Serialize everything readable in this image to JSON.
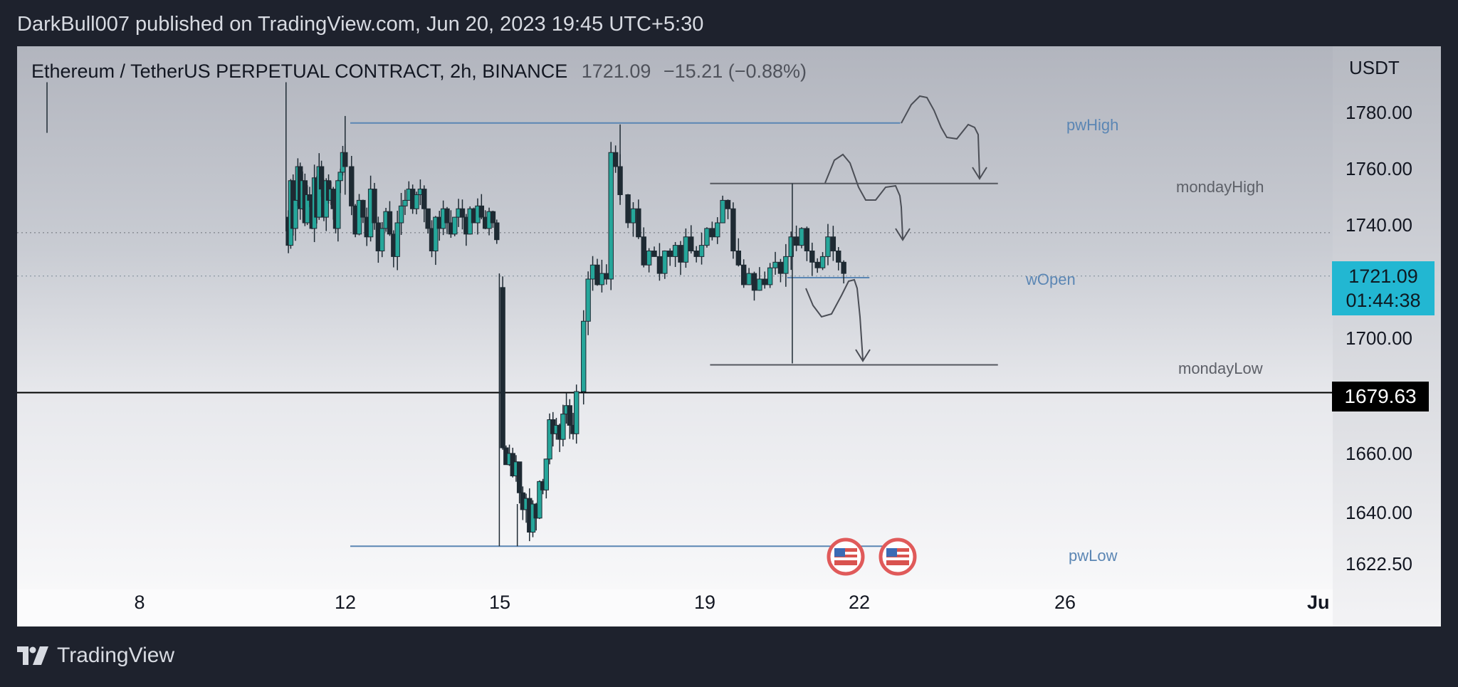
{
  "header": {
    "publish_info": "DarkBull007 published on TradingView.com, Jun 20, 2023 19:45 UTC+5:30"
  },
  "symbol": {
    "title": "Ethereum / TetherUS PERPETUAL CONTRACT, 2h, BINANCE",
    "last": "1721.09",
    "change": "−15.21 (−0.88%)"
  },
  "price_axis": {
    "unit": "USDT",
    "ticks": [
      "1780.00",
      "1760.00",
      "1740.00",
      "1700.00",
      "1660.00",
      "1640.00",
      "1622.50"
    ],
    "current_price": "1721.09",
    "countdown": "01:44:38",
    "crosshair_price": "1679.63"
  },
  "time_axis": {
    "ticks": [
      "8",
      "12",
      "15",
      "19",
      "22",
      "26",
      "Ju"
    ]
  },
  "levels": {
    "pwHigh": "pwHigh",
    "mondayHigh": "mondayHigh",
    "wOpen": "wOpen",
    "mondayLow": "mondayLow",
    "pwLow": "pwLow"
  },
  "colors": {
    "up": "#26a69a",
    "down": "#1e2a33",
    "level_blue": "#5b86b4",
    "level_gray": "#5d6068",
    "price_tag": "#22b7d2"
  },
  "footer": {
    "brand": "TradingView",
    "logo_icon": "tradingview-logo-icon"
  },
  "chart_data": {
    "type": "candlestick",
    "title": "Ethereum / TetherUS PERPETUAL CONTRACT, 2h, BINANCE",
    "xlabel": "",
    "ylabel": "USDT",
    "ylim": [
      1613,
      1790
    ],
    "grid": false,
    "x_ticks": [
      "8",
      "12",
      "15",
      "19",
      "22",
      "26",
      "Ju"
    ],
    "levels": [
      {
        "name": "pwHigh",
        "value": 1775.5
      },
      {
        "name": "mondayHigh",
        "value": 1754
      },
      {
        "name": "wOpen",
        "value": 1720.5
      },
      {
        "name": "mondayLow",
        "value": 1689.5
      },
      {
        "name": "pwLow",
        "value": 1625
      }
    ],
    "last_price": 1721.09,
    "crosshair_price": 1679.63,
    "segments": [
      {
        "start": 10.85,
        "end": 12.0,
        "prices": [
          1742,
          1732,
          1755,
          1738,
          1748,
          1760,
          1745,
          1755,
          1740,
          1750,
          1748,
          1738,
          1756,
          1742,
          1760,
          1752,
          1742,
          1755,
          1748,
          1752,
          1745,
          1738,
          1755,
          1758,
          1765,
          1760
        ]
      },
      {
        "start": 12.05,
        "end": 14.95,
        "prices": [
          1760,
          1746,
          1736,
          1748,
          1742,
          1735,
          1752,
          1740,
          1730,
          1738,
          1744,
          1736,
          1728,
          1740,
          1746,
          1748,
          1752,
          1745,
          1750,
          1752,
          1745,
          1738,
          1730,
          1742,
          1738,
          1745,
          1740,
          1736,
          1742,
          1745,
          1742,
          1736,
          1745,
          1740,
          1746,
          1742,
          1738,
          1744,
          1740,
          1734
        ]
      },
      {
        "start": 15.0,
        "end": 16.5,
        "prices": [
          1717,
          1660,
          1654,
          1658,
          1650,
          1655,
          1644,
          1638,
          1642,
          1630,
          1640,
          1635,
          1648,
          1645,
          1656,
          1670,
          1665,
          1668,
          1663,
          1672,
          1675,
          1668,
          1665,
          1680
        ]
      },
      {
        "start": 16.55,
        "end": 17.35,
        "prices": [
          1680,
          1705,
          1720,
          1725,
          1718,
          1722,
          1720,
          1765,
          1760,
          1750
        ]
      },
      {
        "start": 17.4,
        "end": 21.7,
        "prices": [
          1750,
          1740,
          1745,
          1735,
          1725,
          1730,
          1728,
          1722,
          1730,
          1728,
          1732,
          1726,
          1735,
          1730,
          1728,
          1732,
          1738,
          1735,
          1740,
          1748,
          1745,
          1730,
          1725,
          1718,
          1722,
          1716,
          1720,
          1718,
          1724,
          1726,
          1722,
          1728,
          1735,
          1732,
          1738,
          1730,
          1726,
          1724,
          1728,
          1735,
          1730,
          1726,
          1722
        ]
      }
    ]
  }
}
